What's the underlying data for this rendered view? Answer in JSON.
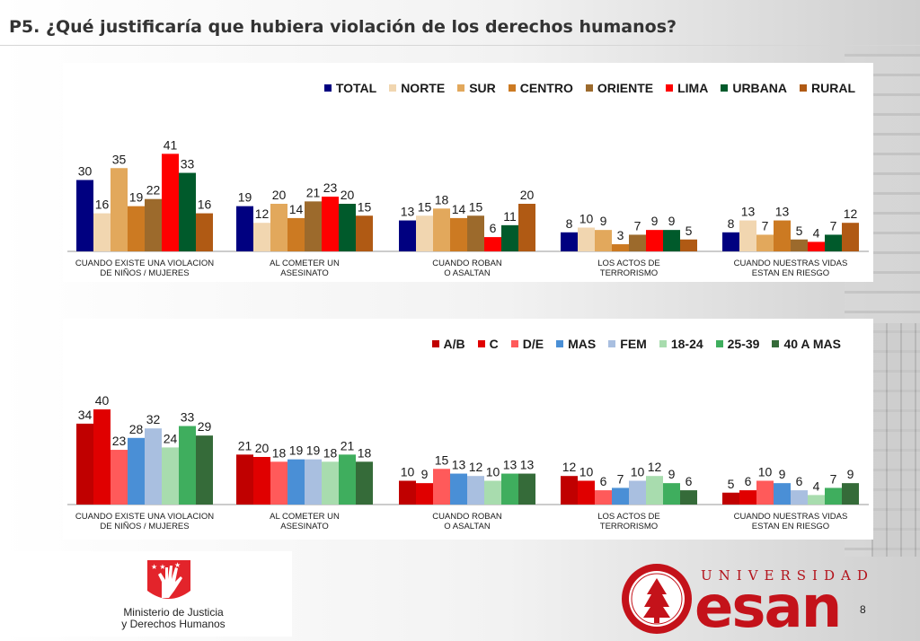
{
  "slide": {
    "title": "P5. ¿Qué justificaría que hubiera violación de los derechos humanos?",
    "page_number": "8"
  },
  "logos": {
    "ministry_line1": "Ministerio de Justicia",
    "ministry_line2": "y Derechos Humanos",
    "university_word": "UNIVERSIDAD",
    "university_name": "esan"
  },
  "chart_data": [
    {
      "type": "bar",
      "title": "",
      "categories": [
        [
          "CUANDO EXISTE UNA VIOLACION",
          "DE NIÑOS / MUJERES"
        ],
        [
          "AL COMETER UN",
          "ASESINATO"
        ],
        [
          "CUANDO ROBAN",
          "O ASALTAN"
        ],
        [
          "LOS ACTOS DE",
          "TERRORISMO"
        ],
        [
          "CUANDO NUESTRAS VIDAS",
          "ESTAN EN RIESGO"
        ]
      ],
      "series": [
        {
          "name": "TOTAL",
          "color": "#000080",
          "values": [
            30,
            19,
            13,
            8,
            8
          ]
        },
        {
          "name": "NORTE",
          "color": "#f1d6b0",
          "values": [
            16,
            12,
            15,
            10,
            13
          ]
        },
        {
          "name": "SUR",
          "color": "#e2a85c",
          "values": [
            35,
            20,
            18,
            9,
            7
          ]
        },
        {
          "name": "CENTRO",
          "color": "#cc7a22",
          "values": [
            19,
            14,
            14,
            3,
            13
          ]
        },
        {
          "name": "ORIENTE",
          "color": "#9c6a2c",
          "values": [
            22,
            21,
            15,
            7,
            5
          ]
        },
        {
          "name": "LIMA",
          "color": "#ff0000",
          "values": [
            41,
            23,
            6,
            9,
            4
          ]
        },
        {
          "name": "URBANA",
          "color": "#005a2b",
          "values": [
            33,
            20,
            11,
            9,
            7
          ]
        },
        {
          "name": "RURAL",
          "color": "#b05a14",
          "values": [
            16,
            15,
            20,
            5,
            12
          ]
        }
      ],
      "ylim": [
        0,
        45
      ],
      "legend_position": "top-right",
      "grid": false
    },
    {
      "type": "bar",
      "title": "",
      "categories": [
        [
          "CUANDO EXISTE UNA VIOLACION",
          "DE NIÑOS / MUJERES"
        ],
        [
          "AL COMETER UN",
          "ASESINATO"
        ],
        [
          "CUANDO ROBAN",
          "O ASALTAN"
        ],
        [
          "LOS ACTOS DE",
          "TERRORISMO"
        ],
        [
          "CUANDO NUESTRAS VIDAS",
          "ESTAN EN RIESGO"
        ]
      ],
      "series": [
        {
          "name": "A/B",
          "color": "#c00000",
          "values": [
            34,
            21,
            10,
            12,
            5
          ]
        },
        {
          "name": "C",
          "color": "#e00000",
          "values": [
            40,
            20,
            9,
            10,
            6
          ]
        },
        {
          "name": "D/E",
          "color": "#ff5a5a",
          "values": [
            23,
            18,
            15,
            6,
            10
          ]
        },
        {
          "name": "MAS",
          "color": "#4a8fd6",
          "values": [
            28,
            19,
            13,
            7,
            9
          ]
        },
        {
          "name": "FEM",
          "color": "#a9bfe0",
          "values": [
            32,
            19,
            12,
            10,
            6
          ]
        },
        {
          "name": "18-24",
          "color": "#a8dcae",
          "values": [
            24,
            18,
            10,
            12,
            4
          ]
        },
        {
          "name": "25-39",
          "color": "#3fae5e",
          "values": [
            33,
            21,
            13,
            9,
            7
          ]
        },
        {
          "name": "40 A MAS",
          "color": "#356b39",
          "values": [
            29,
            18,
            13,
            6,
            9
          ]
        }
      ],
      "ylim": [
        0,
        45
      ],
      "legend_position": "top-right",
      "grid": false
    }
  ]
}
